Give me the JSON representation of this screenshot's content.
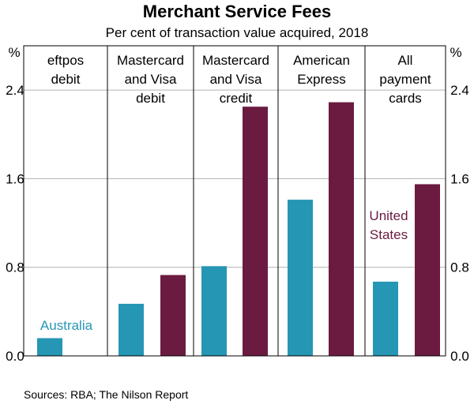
{
  "chart_data": {
    "type": "bar",
    "title": "Merchant Service Fees",
    "subtitle": "Per cent of transaction value acquired, 2018",
    "unit_left": "%",
    "unit_right": "%",
    "ylim": [
      0,
      2.8
    ],
    "yticks": [
      0.0,
      0.8,
      1.6,
      2.4
    ],
    "ytick_labels": [
      "0.0",
      "0.8",
      "1.6",
      "2.4"
    ],
    "grid": true,
    "categories": [
      [
        "eftpos",
        "debit"
      ],
      [
        "Mastercard",
        "and Visa",
        "debit"
      ],
      [
        "Mastercard",
        "and Visa",
        "credit"
      ],
      [
        "American",
        "Express"
      ],
      [
        "All",
        "payment",
        "cards"
      ]
    ],
    "series": [
      {
        "name": "Australia",
        "color": "#2596b4",
        "values": [
          0.16,
          0.47,
          0.81,
          1.41,
          0.67
        ]
      },
      {
        "name": "United States",
        "name_lines": [
          "United",
          "States"
        ],
        "color": "#6b1b40",
        "values": [
          null,
          0.73,
          2.25,
          2.29,
          1.55
        ]
      }
    ],
    "source": "Sources: RBA; The Nilson Report"
  }
}
